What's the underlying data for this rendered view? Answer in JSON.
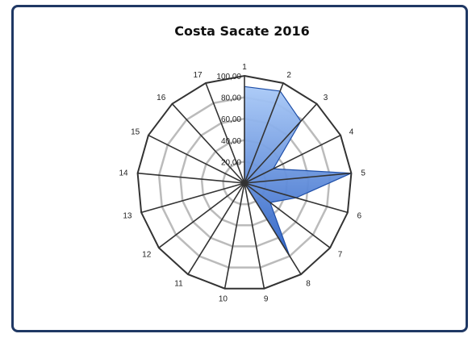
{
  "chart_data": {
    "type": "radar",
    "title": "Costa Sacate  2016",
    "categories": [
      "1",
      "2",
      "3",
      "4",
      "5",
      "6",
      "7",
      "8",
      "9",
      "10",
      "11",
      "12",
      "13",
      "14",
      "15",
      "16",
      "17"
    ],
    "series": [
      {
        "values": [
          90,
          92,
          78,
          30,
          100,
          50,
          30,
          80,
          0,
          0,
          0,
          0,
          0,
          0,
          0,
          0,
          0
        ]
      }
    ],
    "rlim": [
      0,
      100
    ],
    "ticks": [
      "20,00",
      "40,00",
      "60,00",
      "80,00",
      "100,00"
    ],
    "legend": "none",
    "colors": {
      "fill_light": "#a9c9f7",
      "fill_dark": "#2a5fc4",
      "stroke": "#1f4fa8",
      "frame": "#1f3864"
    }
  }
}
